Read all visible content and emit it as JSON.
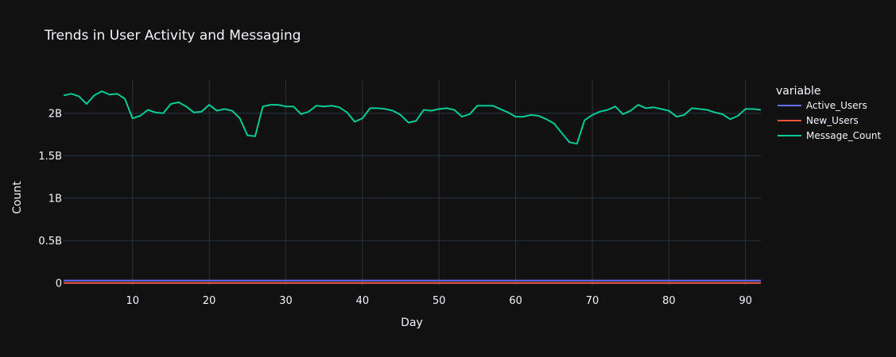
{
  "chart_data": {
    "type": "line",
    "title": "Trends in User Activity and Messaging",
    "xlabel": "Day",
    "ylabel": "Count",
    "xlim": [
      1,
      92
    ],
    "ylim": [
      -0.03,
      2.4
    ],
    "y_unit": "billions",
    "x_ticks": [
      10,
      20,
      30,
      40,
      50,
      60,
      70,
      80,
      90
    ],
    "x_tick_labels": [
      "10",
      "20",
      "30",
      "40",
      "50",
      "60",
      "70",
      "80",
      "90"
    ],
    "y_ticks": [
      0,
      0.5,
      1,
      1.5,
      2
    ],
    "y_tick_labels": [
      "0",
      "0.5B",
      "1B",
      "1.5B",
      "2B"
    ],
    "grid": true,
    "legend": {
      "title": "variable",
      "placement": "right"
    },
    "x": [
      1,
      2,
      3,
      4,
      5,
      6,
      7,
      8,
      9,
      10,
      11,
      12,
      13,
      14,
      15,
      16,
      17,
      18,
      19,
      20,
      21,
      22,
      23,
      24,
      25,
      26,
      27,
      28,
      29,
      30,
      31,
      32,
      33,
      34,
      35,
      36,
      37,
      38,
      39,
      40,
      41,
      42,
      43,
      44,
      45,
      46,
      47,
      48,
      49,
      50,
      51,
      52,
      53,
      54,
      55,
      56,
      57,
      58,
      59,
      60,
      61,
      62,
      63,
      64,
      65,
      66,
      67,
      68,
      69,
      70,
      71,
      72,
      73,
      74,
      75,
      76,
      77,
      78,
      79,
      80,
      81,
      82,
      83,
      84,
      85,
      86,
      87,
      88,
      89,
      90,
      91,
      92
    ],
    "series": [
      {
        "name": "Active_Users",
        "color": "#636efa",
        "values": [
          0.03,
          0.03,
          0.03,
          0.03,
          0.03,
          0.03,
          0.03,
          0.03,
          0.03,
          0.03,
          0.03,
          0.03,
          0.03,
          0.03,
          0.03,
          0.03,
          0.03,
          0.03,
          0.03,
          0.03,
          0.03,
          0.03,
          0.03,
          0.03,
          0.03,
          0.03,
          0.03,
          0.03,
          0.03,
          0.03,
          0.03,
          0.03,
          0.03,
          0.03,
          0.03,
          0.03,
          0.03,
          0.03,
          0.03,
          0.03,
          0.03,
          0.03,
          0.03,
          0.03,
          0.03,
          0.03,
          0.03,
          0.03,
          0.03,
          0.03,
          0.03,
          0.03,
          0.03,
          0.03,
          0.03,
          0.03,
          0.03,
          0.03,
          0.03,
          0.03,
          0.03,
          0.03,
          0.03,
          0.03,
          0.03,
          0.03,
          0.03,
          0.03,
          0.03,
          0.03,
          0.03,
          0.03,
          0.03,
          0.03,
          0.03,
          0.03,
          0.03,
          0.03,
          0.03,
          0.03,
          0.03,
          0.03,
          0.03,
          0.03,
          0.03,
          0.03,
          0.03,
          0.03,
          0.03,
          0.03,
          0.03,
          0.03
        ]
      },
      {
        "name": "New_Users",
        "color": "#ef553b",
        "values": [
          0.002,
          0.002,
          0.002,
          0.002,
          0.002,
          0.002,
          0.002,
          0.002,
          0.002,
          0.002,
          0.002,
          0.002,
          0.002,
          0.002,
          0.002,
          0.002,
          0.002,
          0.002,
          0.002,
          0.002,
          0.002,
          0.002,
          0.002,
          0.002,
          0.002,
          0.002,
          0.002,
          0.002,
          0.002,
          0.002,
          0.002,
          0.002,
          0.002,
          0.002,
          0.002,
          0.002,
          0.002,
          0.002,
          0.002,
          0.002,
          0.002,
          0.002,
          0.002,
          0.002,
          0.002,
          0.002,
          0.002,
          0.002,
          0.002,
          0.002,
          0.002,
          0.002,
          0.002,
          0.002,
          0.002,
          0.002,
          0.002,
          0.002,
          0.002,
          0.002,
          0.002,
          0.002,
          0.002,
          0.002,
          0.002,
          0.002,
          0.002,
          0.002,
          0.002,
          0.002,
          0.002,
          0.002,
          0.002,
          0.002,
          0.002,
          0.002,
          0.002,
          0.002,
          0.002,
          0.002,
          0.002,
          0.002,
          0.002,
          0.002,
          0.002,
          0.002,
          0.002,
          0.002,
          0.002,
          0.002,
          0.002,
          0.002
        ]
      },
      {
        "name": "Message_Count",
        "color": "#00cc96",
        "values": [
          2.21,
          2.23,
          2.2,
          2.11,
          2.21,
          2.26,
          2.22,
          2.23,
          2.17,
          1.94,
          1.97,
          2.04,
          2.01,
          2.0,
          2.11,
          2.13,
          2.08,
          2.01,
          2.02,
          2.1,
          2.03,
          2.05,
          2.03,
          1.94,
          1.74,
          1.73,
          2.08,
          2.1,
          2.1,
          2.08,
          2.08,
          1.99,
          2.02,
          2.09,
          2.08,
          2.09,
          2.07,
          2.01,
          1.9,
          1.94,
          2.06,
          2.06,
          2.05,
          2.03,
          1.98,
          1.89,
          1.91,
          2.04,
          2.03,
          2.05,
          2.06,
          2.04,
          1.96,
          1.99,
          2.09,
          2.09,
          2.09,
          2.05,
          2.01,
          1.96,
          1.96,
          1.98,
          1.97,
          1.93,
          1.88,
          1.77,
          1.66,
          1.64,
          1.92,
          1.98,
          2.02,
          2.04,
          2.08,
          1.99,
          2.03,
          2.1,
          2.06,
          2.07,
          2.05,
          2.03,
          1.96,
          1.98,
          2.06,
          2.05,
          2.04,
          2.01,
          1.99,
          1.93,
          1.97,
          2.05,
          2.05,
          2.04
        ]
      }
    ]
  }
}
